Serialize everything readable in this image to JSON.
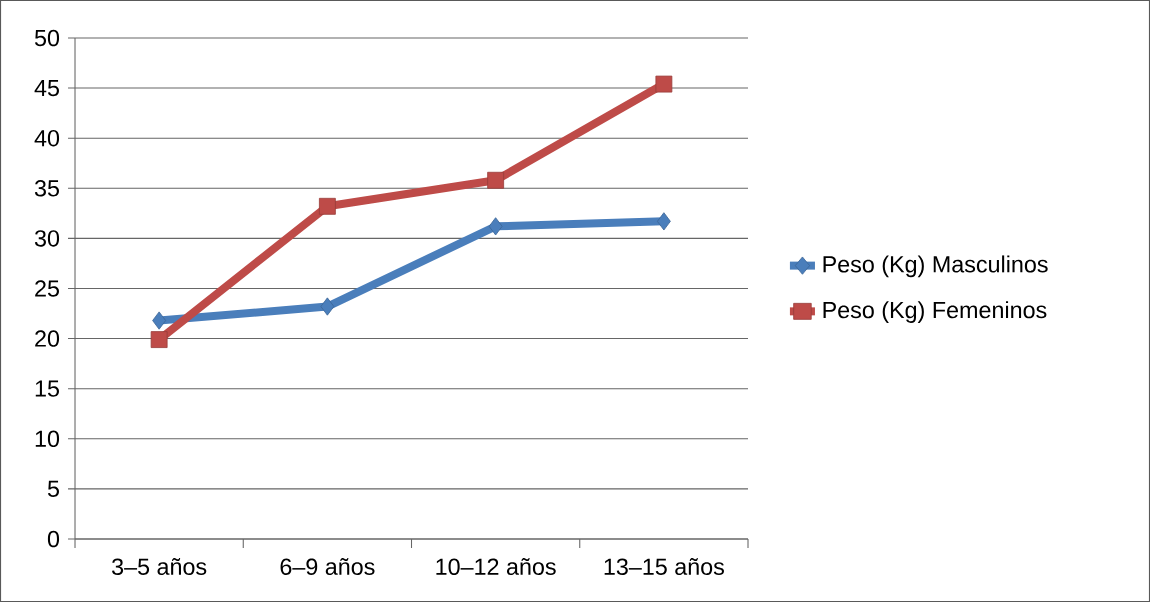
{
  "chart_data": {
    "type": "line",
    "categories": [
      "3–5 años",
      "6–9 años",
      "10–12 años",
      "13–15 años"
    ],
    "series": [
      {
        "name": "Peso (Kg) Masculinos",
        "color": "#4a7ebb",
        "marker": "diamond",
        "values": [
          21.8,
          23.2,
          31.2,
          31.7
        ]
      },
      {
        "name": "Peso (Kg) Femeninos",
        "color": "#be4b48",
        "marker": "square",
        "values": [
          19.9,
          33.2,
          35.8,
          45.4
        ]
      }
    ],
    "ylim": [
      0,
      50
    ],
    "yticks": [
      0,
      5,
      10,
      15,
      20,
      25,
      30,
      35,
      40,
      45,
      50
    ],
    "grid": "y",
    "legend": "right"
  }
}
